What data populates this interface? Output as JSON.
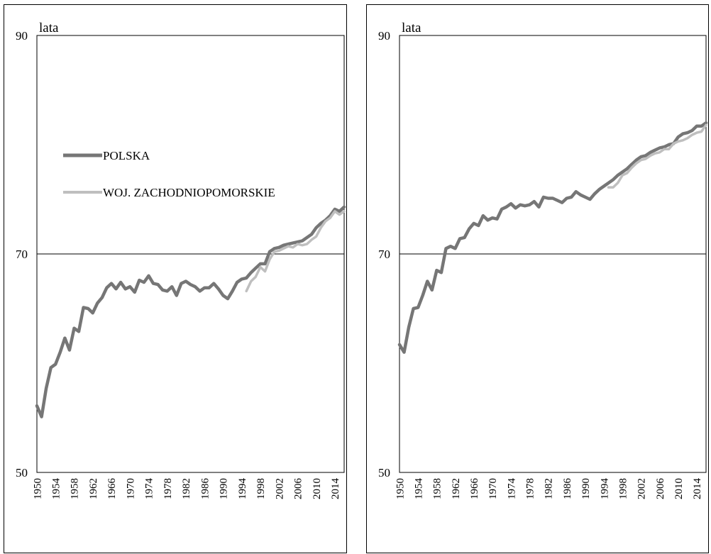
{
  "colors": {
    "polska": "#767676",
    "woj": "#bfbfbf",
    "axis": "#000000"
  },
  "chart_data": [
    {
      "type": "line",
      "ylabel": "lata",
      "ylim": [
        50,
        90
      ],
      "yticks": [
        50,
        70,
        90
      ],
      "xlim": [
        1950,
        2016
      ],
      "xticks": [
        1950,
        1954,
        1958,
        1962,
        1966,
        1970,
        1974,
        1978,
        1982,
        1986,
        1990,
        1994,
        1998,
        2002,
        2006,
        2010,
        2014
      ],
      "grid": false,
      "reference_line": 70,
      "legend": {
        "placement": "center-left",
        "entries": [
          "POLSKA",
          "WOJ. ZACHODNIOPOMORSKIE"
        ]
      },
      "series": [
        {
          "name": "POLSKA",
          "x": [
            1950,
            1951,
            1952,
            1953,
            1954,
            1955,
            1956,
            1957,
            1958,
            1959,
            1960,
            1961,
            1962,
            1963,
            1964,
            1965,
            1966,
            1967,
            1968,
            1969,
            1970,
            1971,
            1972,
            1973,
            1974,
            1975,
            1976,
            1977,
            1978,
            1979,
            1980,
            1981,
            1982,
            1983,
            1984,
            1985,
            1986,
            1987,
            1988,
            1989,
            1990,
            1991,
            1992,
            1993,
            1994,
            1995,
            1996,
            1997,
            1998,
            1999,
            2000,
            2001,
            2002,
            2003,
            2004,
            2005,
            2006,
            2007,
            2008,
            2009,
            2010,
            2011,
            2012,
            2013,
            2014,
            2015,
            2016
          ],
          "y": [
            56.1,
            55.1,
            57.7,
            59.6,
            59.9,
            61.0,
            62.3,
            61.2,
            63.2,
            62.9,
            65.1,
            65.0,
            64.6,
            65.5,
            66.0,
            66.9,
            67.3,
            66.8,
            67.4,
            66.8,
            67.0,
            66.5,
            67.6,
            67.4,
            68.0,
            67.3,
            67.2,
            66.7,
            66.6,
            67.0,
            66.2,
            67.3,
            67.5,
            67.2,
            67.0,
            66.6,
            66.9,
            66.9,
            67.3,
            66.8,
            66.2,
            65.9,
            66.6,
            67.4,
            67.7,
            67.8,
            68.3,
            68.7,
            69.1,
            69.1,
            70.2,
            70.5,
            70.6,
            70.8,
            70.9,
            71.0,
            71.1,
            71.2,
            71.5,
            71.8,
            72.4,
            72.8,
            73.1,
            73.5,
            74.1,
            73.9,
            74.3
          ]
        },
        {
          "name": "WOJ. ZACHODNIOPOMORSKIE",
          "x": [
            1995,
            1996,
            1997,
            1998,
            1999,
            2000,
            2001,
            2002,
            2003,
            2004,
            2005,
            2006,
            2007,
            2008,
            2009,
            2010,
            2011,
            2012,
            2013,
            2014,
            2015,
            2016
          ],
          "y": [
            66.6,
            67.5,
            67.9,
            68.8,
            68.4,
            69.5,
            70.2,
            70.3,
            70.5,
            70.7,
            70.6,
            70.9,
            70.8,
            70.9,
            71.3,
            71.6,
            72.4,
            73.0,
            73.3,
            73.9,
            73.6,
            73.9
          ]
        }
      ]
    },
    {
      "type": "line",
      "ylabel": "lata",
      "ylim": [
        50,
        90
      ],
      "yticks": [
        50,
        70,
        90
      ],
      "xlim": [
        1950,
        2016
      ],
      "xticks": [
        1950,
        1954,
        1958,
        1962,
        1966,
        1970,
        1974,
        1978,
        1982,
        1986,
        1990,
        1994,
        1998,
        2002,
        2006,
        2010,
        2014
      ],
      "grid": false,
      "reference_line": 70,
      "series": [
        {
          "name": "POLSKA",
          "x": [
            1950,
            1951,
            1952,
            1953,
            1954,
            1955,
            1956,
            1957,
            1958,
            1959,
            1960,
            1961,
            1962,
            1963,
            1964,
            1965,
            1966,
            1967,
            1968,
            1969,
            1970,
            1971,
            1972,
            1973,
            1974,
            1975,
            1976,
            1977,
            1978,
            1979,
            1980,
            1981,
            1982,
            1983,
            1984,
            1985,
            1986,
            1987,
            1988,
            1989,
            1990,
            1991,
            1992,
            1993,
            1994,
            1995,
            1996,
            1997,
            1998,
            1999,
            2000,
            2001,
            2002,
            2003,
            2004,
            2005,
            2006,
            2007,
            2008,
            2009,
            2010,
            2011,
            2012,
            2013,
            2014,
            2015,
            2016
          ],
          "y": [
            61.7,
            61.0,
            63.3,
            65.0,
            65.1,
            66.2,
            67.5,
            66.7,
            68.5,
            68.3,
            70.5,
            70.7,
            70.5,
            71.4,
            71.5,
            72.3,
            72.8,
            72.6,
            73.5,
            73.1,
            73.3,
            73.2,
            74.1,
            74.3,
            74.6,
            74.2,
            74.5,
            74.4,
            74.5,
            74.8,
            74.3,
            75.2,
            75.1,
            75.1,
            74.9,
            74.7,
            75.1,
            75.2,
            75.7,
            75.4,
            75.2,
            75.0,
            75.5,
            75.9,
            76.2,
            76.5,
            76.8,
            77.2,
            77.5,
            77.8,
            78.2,
            78.6,
            78.9,
            79.0,
            79.3,
            79.5,
            79.7,
            79.8,
            80.0,
            80.1,
            80.7,
            81.0,
            81.1,
            81.3,
            81.7,
            81.7,
            82.0
          ]
        },
        {
          "name": "WOJ. ZACHODNIOPOMORSKIE",
          "x": [
            1995,
            1996,
            1997,
            1998,
            1999,
            2000,
            2001,
            2002,
            2003,
            2004,
            2005,
            2006,
            2007,
            2008,
            2009,
            2010,
            2011,
            2012,
            2013,
            2014,
            2015,
            2016
          ],
          "y": [
            76.1,
            76.1,
            76.5,
            77.2,
            77.4,
            77.9,
            78.3,
            78.6,
            78.7,
            79.0,
            79.2,
            79.3,
            79.6,
            79.6,
            80.1,
            80.3,
            80.4,
            80.6,
            80.9,
            81.1,
            81.2,
            81.8
          ]
        }
      ]
    }
  ]
}
